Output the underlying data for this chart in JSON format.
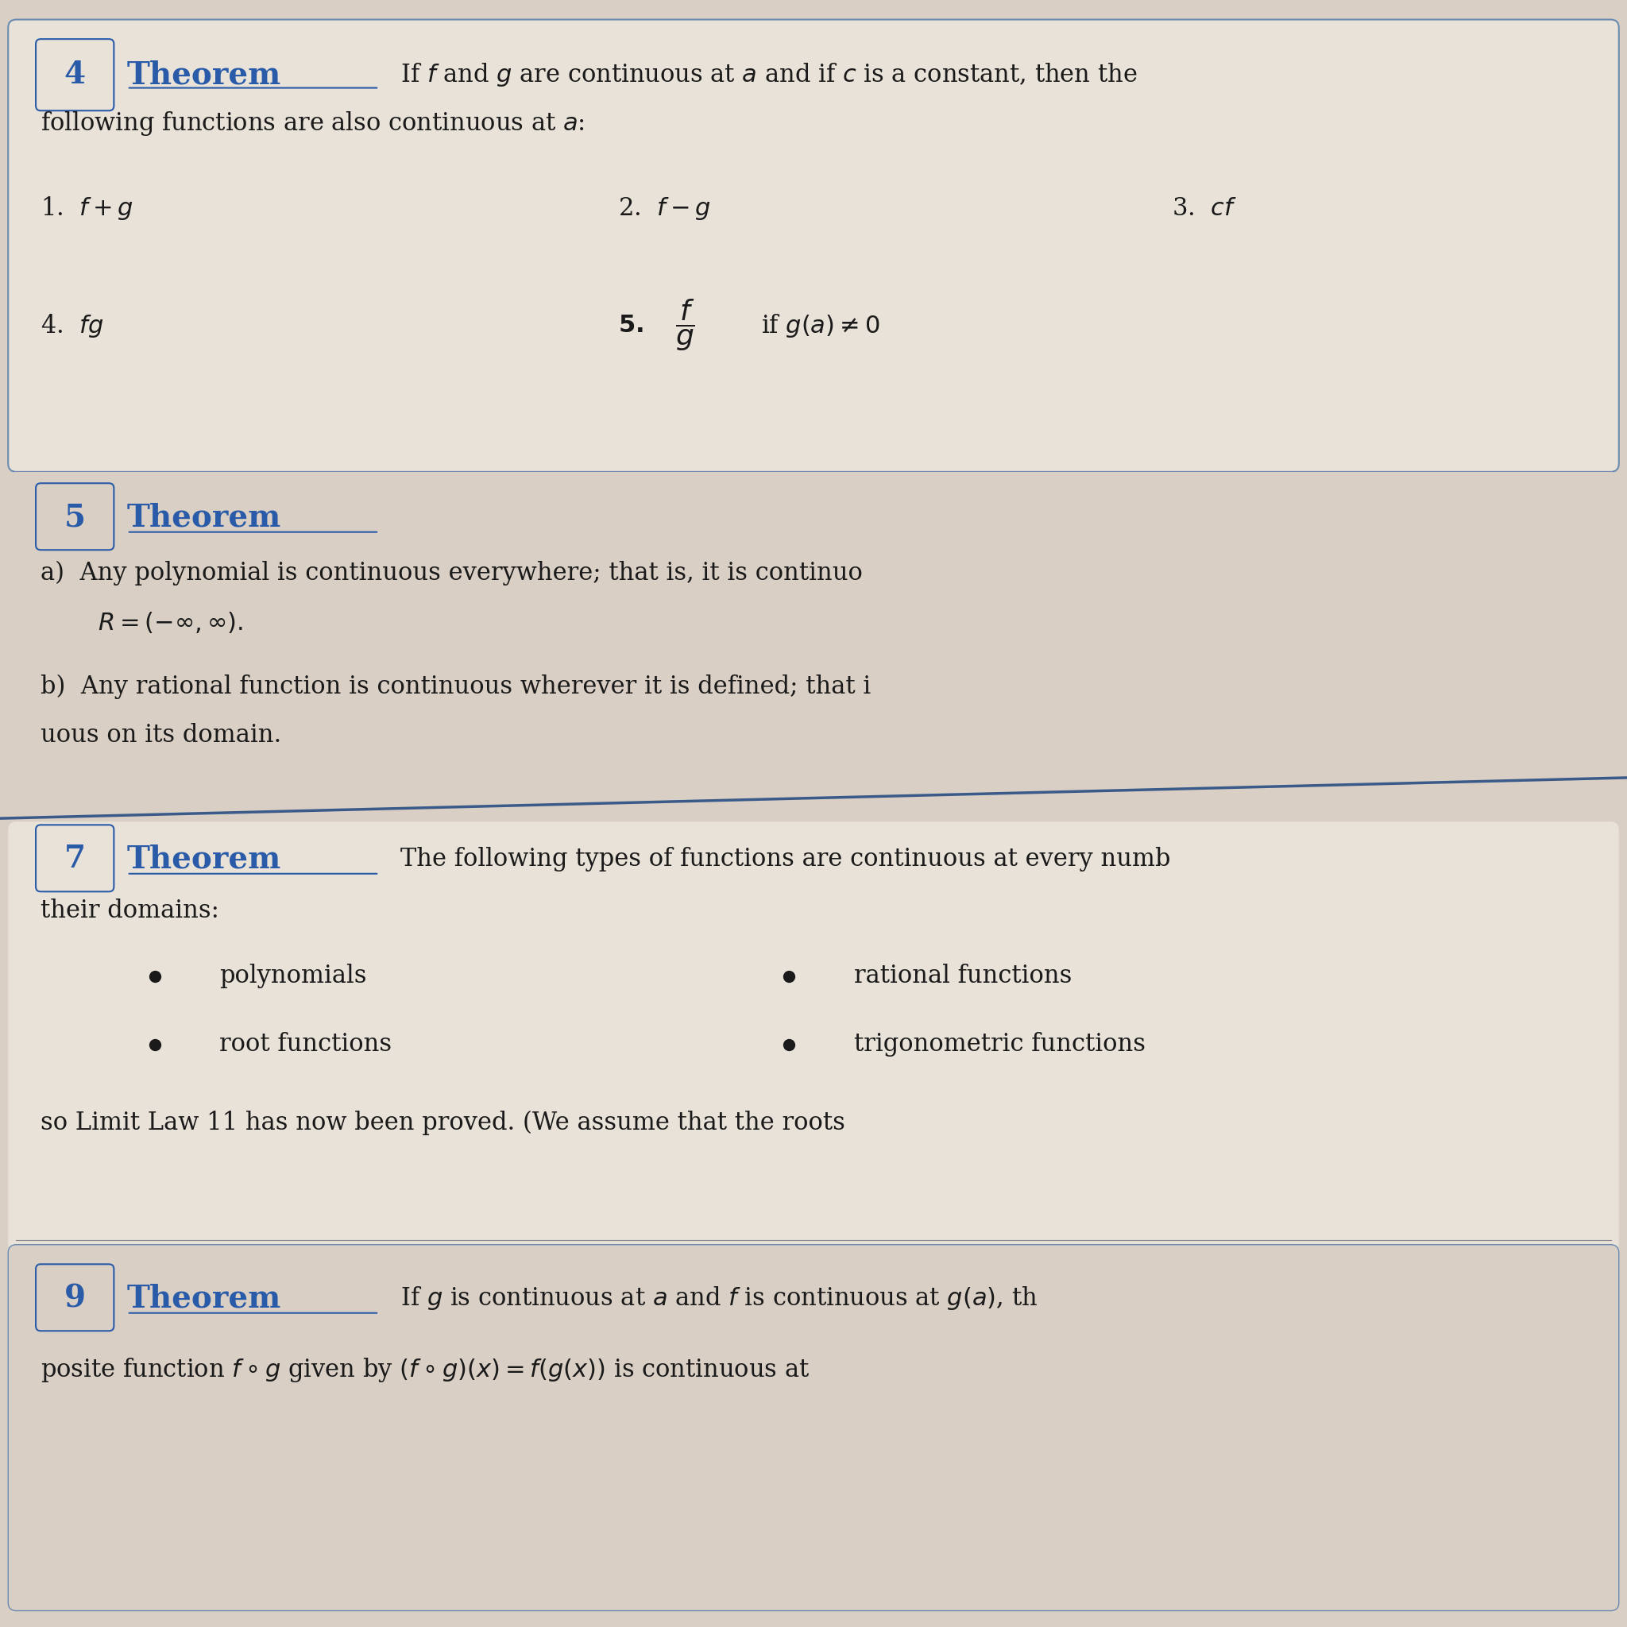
{
  "bg_top": "#d9cfc4",
  "bg_box1": "#e8e2d8",
  "bg_box2": "#d9cfc4",
  "bg_box3": "#e8e2d8",
  "bg_box4": "#d9cfc4",
  "blue_color": "#2a5ba8",
  "dark_text": "#1a1a1a",
  "box_border": "#6a8ab0",
  "theorem4_number": "4",
  "theorem4_header": "Theorem",
  "theorem4_text1": "If $f$ and $g$ are continuous at $a$ and if $c$ is a constant, then the",
  "theorem4_text2": "following functions are also continuous at $a$:",
  "item1": "1.  $f + g$",
  "item2": "2.  $f - g$",
  "item3": "3.  $cf$",
  "item4": "4.  $fg$",
  "theorem5_number": "5",
  "theorem5_header": "Theorem",
  "theorem5_a": "a)  Any polynomial is continuous everywhere; that is, it is continuo",
  "theorem5_a2": "$R = (-\\infty, \\infty).$",
  "theorem5_b": "b)  Any rational function is continuous wherever it is defined; that i",
  "theorem5_b2": "uous on its domain.",
  "theorem7_number": "7",
  "theorem7_header": "Theorem",
  "theorem7_text": "The following types of functions are continuous at every numb",
  "theorem7_text2": "their domains:",
  "bullet1_col1": "polynomials",
  "bullet1_col2": "rational functions",
  "bullet2_col1": "root functions",
  "bullet2_col2": "trigonometric functions",
  "limit_law_text": "so Limit Law 11 has now been proved. (We assume that the roots",
  "theorem9_number": "9",
  "theorem9_header": "Theorem",
  "theorem9_text1": "If $g$ is continuous at $a$ and $f$ is continuous at $g(a)$, th",
  "theorem9_text2": "posite function $f \\circ g$ given by $(f \\circ g)(x) = f(g(x))$ is continuous at"
}
